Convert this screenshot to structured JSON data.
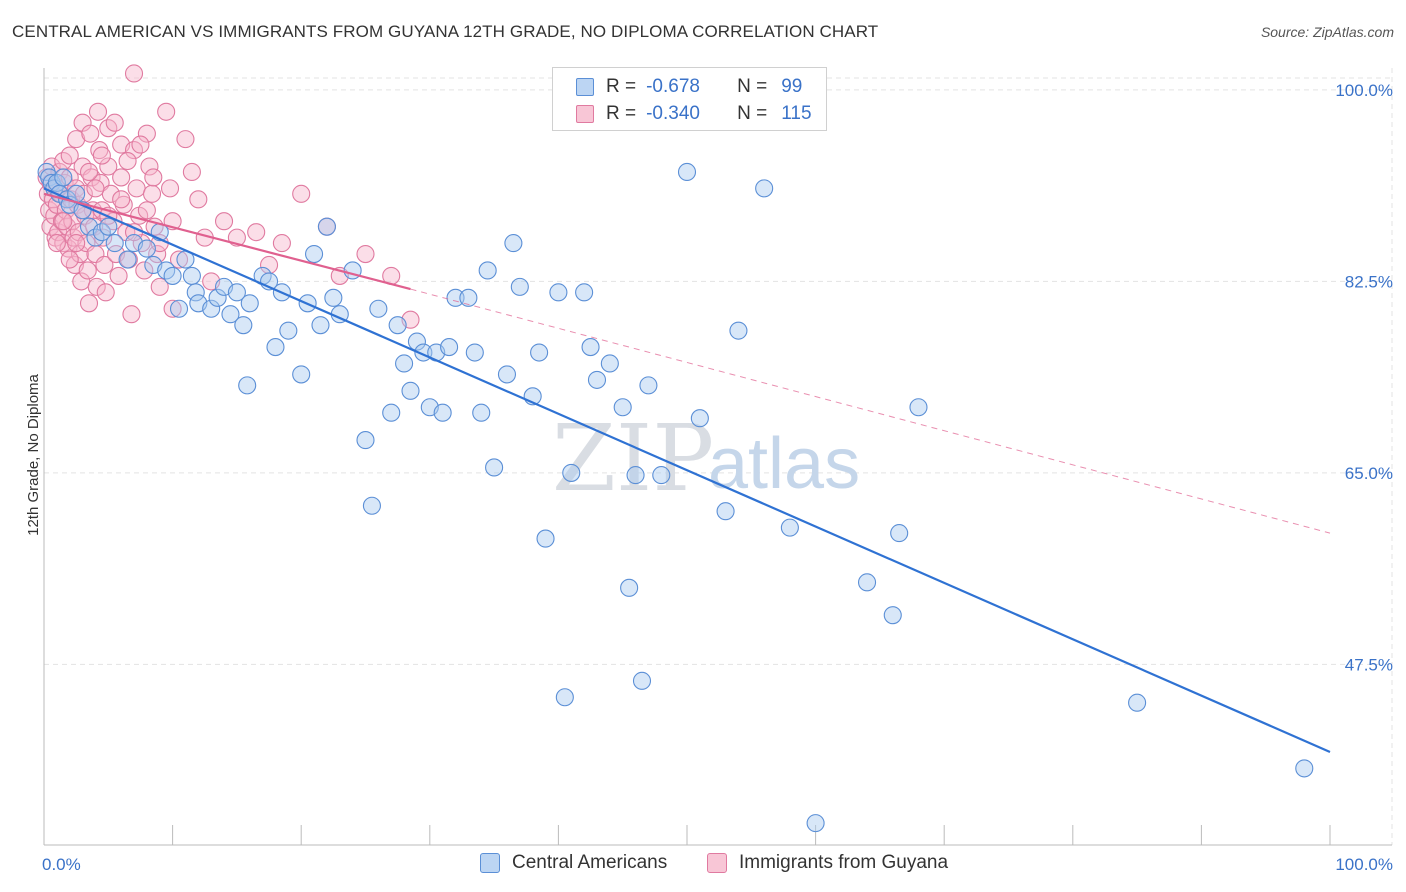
{
  "title": "CENTRAL AMERICAN VS IMMIGRANTS FROM GUYANA 12TH GRADE, NO DIPLOMA CORRELATION CHART",
  "source": "Source: ZipAtlas.com",
  "watermark": {
    "zip": "ZIP",
    "atlas": "atlas"
  },
  "colors": {
    "blue_fill": "#a9c9f0",
    "blue_stroke": "#5b8fd6",
    "blue_line": "#2f72d3",
    "pink_fill": "#f6b6cb",
    "pink_stroke": "#e07aa0",
    "pink_line": "#e0608f",
    "tick_text": "#3a72c8",
    "grid": "#e3e3e3"
  },
  "legend": {
    "rows": [
      {
        "r_label": "R =",
        "r_value": "-0.678",
        "n_label": "N =",
        "n_value": "99",
        "series": "blue"
      },
      {
        "r_label": "R =",
        "r_value": "-0.340",
        "n_label": "N =",
        "n_value": "115",
        "series": "pink"
      }
    ]
  },
  "bottom_legend": [
    "Central Americans",
    "Immigrants from Guyana"
  ],
  "chart_data": {
    "type": "scatter",
    "title": "CENTRAL AMERICAN VS IMMIGRANTS FROM GUYANA 12TH GRADE, NO DIPLOMA CORRELATION CHART",
    "xlabel": "",
    "ylabel": "12th Grade, No Diploma",
    "xlim": [
      0,
      100
    ],
    "ylim": [
      31,
      102
    ],
    "x_ticks": [
      "0.0%",
      "100.0%"
    ],
    "y_ticks": [
      {
        "value": 100.0,
        "label": "100.0%"
      },
      {
        "value": 82.5,
        "label": "82.5%"
      },
      {
        "value": 65.0,
        "label": "65.0%"
      },
      {
        "value": 47.5,
        "label": "47.5%"
      }
    ],
    "grid": true,
    "legend_position": "top-center",
    "series": [
      {
        "name": "Central Americans",
        "color": "blue",
        "r": -0.678,
        "n": 99,
        "trend": {
          "x": [
            0,
            100
          ],
          "y": [
            91.0,
            39.5
          ],
          "style": "solid"
        },
        "points": [
          [
            0.2,
            92.5
          ],
          [
            0.4,
            92.0
          ],
          [
            0.6,
            91.5
          ],
          [
            0.8,
            91.0
          ],
          [
            1.0,
            91.5
          ],
          [
            1.2,
            90.5
          ],
          [
            1.5,
            92.0
          ],
          [
            1.8,
            90.0
          ],
          [
            2.0,
            89.5
          ],
          [
            2.5,
            90.5
          ],
          [
            3.0,
            89.0
          ],
          [
            3.5,
            87.5
          ],
          [
            4.0,
            86.5
          ],
          [
            4.5,
            87.0
          ],
          [
            5.0,
            87.5
          ],
          [
            5.5,
            86.0
          ],
          [
            6.5,
            84.5
          ],
          [
            7.0,
            86.0
          ],
          [
            8.0,
            85.5
          ],
          [
            8.5,
            84.0
          ],
          [
            9.0,
            87.0
          ],
          [
            9.5,
            83.5
          ],
          [
            10.0,
            83.0
          ],
          [
            10.5,
            80.0
          ],
          [
            11.0,
            84.5
          ],
          [
            11.5,
            83.0
          ],
          [
            11.8,
            81.5
          ],
          [
            12.0,
            80.5
          ],
          [
            13.0,
            80.0
          ],
          [
            13.5,
            81.0
          ],
          [
            14.0,
            82.0
          ],
          [
            14.5,
            79.5
          ],
          [
            15.0,
            81.5
          ],
          [
            15.5,
            78.5
          ],
          [
            15.8,
            73.0
          ],
          [
            16.0,
            80.5
          ],
          [
            17.0,
            83.0
          ],
          [
            17.5,
            82.5
          ],
          [
            18.0,
            76.5
          ],
          [
            18.5,
            81.5
          ],
          [
            19.0,
            78.0
          ],
          [
            20.0,
            74.0
          ],
          [
            20.5,
            80.5
          ],
          [
            21.0,
            85.0
          ],
          [
            21.5,
            78.5
          ],
          [
            22.0,
            87.5
          ],
          [
            22.5,
            81.0
          ],
          [
            23.0,
            79.5
          ],
          [
            24.0,
            83.5
          ],
          [
            25.0,
            68.0
          ],
          [
            25.5,
            62.0
          ],
          [
            26.0,
            80.0
          ],
          [
            27.0,
            70.5
          ],
          [
            27.5,
            78.5
          ],
          [
            28.0,
            75.0
          ],
          [
            28.5,
            72.5
          ],
          [
            29.0,
            77.0
          ],
          [
            29.5,
            76.0
          ],
          [
            30.0,
            71.0
          ],
          [
            30.5,
            76.0
          ],
          [
            31.0,
            70.5
          ],
          [
            31.5,
            76.5
          ],
          [
            32.0,
            81.0
          ],
          [
            33.0,
            81.0
          ],
          [
            33.5,
            76.0
          ],
          [
            34.0,
            70.5
          ],
          [
            34.5,
            83.5
          ],
          [
            35.0,
            65.5
          ],
          [
            36.0,
            74.0
          ],
          [
            36.5,
            86.0
          ],
          [
            37.0,
            82.0
          ],
          [
            38.0,
            72.0
          ],
          [
            38.5,
            76.0
          ],
          [
            39.0,
            59.0
          ],
          [
            40.0,
            81.5
          ],
          [
            40.5,
            44.5
          ],
          [
            41.0,
            65.0
          ],
          [
            42.0,
            81.5
          ],
          [
            42.5,
            76.5
          ],
          [
            43.0,
            73.5
          ],
          [
            44.0,
            75.0
          ],
          [
            45.0,
            71.0
          ],
          [
            45.5,
            54.5
          ],
          [
            46.0,
            64.8
          ],
          [
            46.5,
            46.0
          ],
          [
            47.0,
            73.0
          ],
          [
            48.0,
            64.8
          ],
          [
            50.0,
            92.5
          ],
          [
            51.0,
            70.0
          ],
          [
            53.0,
            61.5
          ],
          [
            54.0,
            78.0
          ],
          [
            56.0,
            91.0
          ],
          [
            58.0,
            60.0
          ],
          [
            60.0,
            33.0
          ],
          [
            64.0,
            55.0
          ],
          [
            66.0,
            52.0
          ],
          [
            66.5,
            59.5
          ],
          [
            68.0,
            71.0
          ],
          [
            85.0,
            44.0
          ],
          [
            98.0,
            38.0
          ]
        ]
      },
      {
        "name": "Immigrants from Guyana",
        "color": "pink",
        "r": -0.34,
        "n": 115,
        "trend": {
          "x": [
            0,
            28.5
          ],
          "y": [
            90.5,
            81.8
          ],
          "style": "solid",
          "extended": {
            "x": [
              28.5,
              100
            ],
            "y": [
              81.8,
              59.5
            ],
            "style": "dashed"
          }
        },
        "points": [
          [
            0.2,
            92.0
          ],
          [
            0.3,
            90.5
          ],
          [
            0.4,
            89.0
          ],
          [
            0.5,
            91.5
          ],
          [
            0.5,
            87.5
          ],
          [
            0.6,
            93.0
          ],
          [
            0.7,
            90.0
          ],
          [
            0.8,
            88.5
          ],
          [
            0.9,
            86.5
          ],
          [
            1.0,
            91.0
          ],
          [
            1.0,
            89.5
          ],
          [
            1.1,
            87.0
          ],
          [
            1.2,
            92.5
          ],
          [
            1.3,
            90.5
          ],
          [
            1.4,
            88.0
          ],
          [
            1.5,
            86.0
          ],
          [
            1.5,
            93.5
          ],
          [
            1.6,
            91.5
          ],
          [
            1.7,
            89.0
          ],
          [
            1.8,
            87.5
          ],
          [
            1.9,
            85.5
          ],
          [
            2.0,
            94.0
          ],
          [
            2.0,
            92.0
          ],
          [
            2.1,
            90.0
          ],
          [
            2.2,
            88.0
          ],
          [
            2.3,
            86.5
          ],
          [
            2.4,
            84.0
          ],
          [
            2.5,
            95.5
          ],
          [
            2.5,
            91.0
          ],
          [
            2.6,
            89.5
          ],
          [
            2.7,
            87.0
          ],
          [
            2.8,
            85.0
          ],
          [
            2.9,
            82.5
          ],
          [
            3.0,
            97.0
          ],
          [
            3.0,
            93.0
          ],
          [
            3.1,
            90.5
          ],
          [
            3.2,
            88.5
          ],
          [
            3.3,
            86.0
          ],
          [
            3.4,
            83.5
          ],
          [
            3.5,
            80.5
          ],
          [
            3.6,
            96.0
          ],
          [
            3.7,
            92.0
          ],
          [
            3.8,
            89.0
          ],
          [
            3.9,
            87.5
          ],
          [
            4.0,
            85.0
          ],
          [
            4.1,
            82.0
          ],
          [
            4.2,
            98.0
          ],
          [
            4.3,
            94.5
          ],
          [
            4.4,
            91.5
          ],
          [
            4.5,
            89.0
          ],
          [
            4.6,
            86.5
          ],
          [
            4.7,
            84.0
          ],
          [
            4.8,
            81.5
          ],
          [
            5.0,
            96.5
          ],
          [
            5.0,
            93.0
          ],
          [
            5.2,
            90.5
          ],
          [
            5.4,
            88.0
          ],
          [
            5.6,
            85.0
          ],
          [
            5.8,
            83.0
          ],
          [
            6.0,
            95.0
          ],
          [
            6.0,
            92.0
          ],
          [
            6.2,
            89.5
          ],
          [
            6.4,
            87.0
          ],
          [
            6.6,
            84.5
          ],
          [
            6.8,
            79.5
          ],
          [
            7.0,
            101.5
          ],
          [
            7.0,
            94.5
          ],
          [
            7.2,
            91.0
          ],
          [
            7.4,
            88.5
          ],
          [
            7.6,
            86.0
          ],
          [
            7.8,
            83.5
          ],
          [
            8.0,
            96.0
          ],
          [
            8.2,
            93.0
          ],
          [
            8.4,
            90.5
          ],
          [
            8.6,
            87.5
          ],
          [
            8.8,
            85.0
          ],
          [
            9.0,
            82.0
          ],
          [
            9.5,
            98.0
          ],
          [
            9.8,
            91.0
          ],
          [
            10.0,
            88.0
          ],
          [
            10.5,
            84.5
          ],
          [
            11.0,
            95.5
          ],
          [
            11.5,
            92.5
          ],
          [
            12.0,
            90.0
          ],
          [
            12.5,
            86.5
          ],
          [
            13.0,
            82.5
          ],
          [
            14.0,
            88.0
          ],
          [
            15.0,
            86.5
          ],
          [
            16.5,
            87.0
          ],
          [
            17.5,
            84.0
          ],
          [
            18.5,
            86.0
          ],
          [
            20.0,
            90.5
          ],
          [
            22.0,
            87.5
          ],
          [
            23.0,
            83.0
          ],
          [
            25.0,
            85.0
          ],
          [
            27.0,
            83.0
          ],
          [
            28.5,
            79.0
          ],
          [
            1.0,
            86.0
          ],
          [
            2.0,
            84.5
          ],
          [
            3.0,
            89.0
          ],
          [
            4.0,
            91.0
          ],
          [
            5.0,
            88.5
          ],
          [
            6.0,
            90.0
          ],
          [
            7.0,
            87.0
          ],
          [
            8.0,
            89.0
          ],
          [
            9.0,
            86.0
          ],
          [
            1.5,
            88.0
          ],
          [
            2.5,
            86.0
          ],
          [
            3.5,
            92.5
          ],
          [
            4.5,
            94.0
          ],
          [
            5.5,
            97.0
          ],
          [
            6.5,
            93.5
          ],
          [
            7.5,
            95.0
          ],
          [
            8.5,
            92.0
          ],
          [
            10.0,
            80.0
          ]
        ]
      }
    ]
  }
}
